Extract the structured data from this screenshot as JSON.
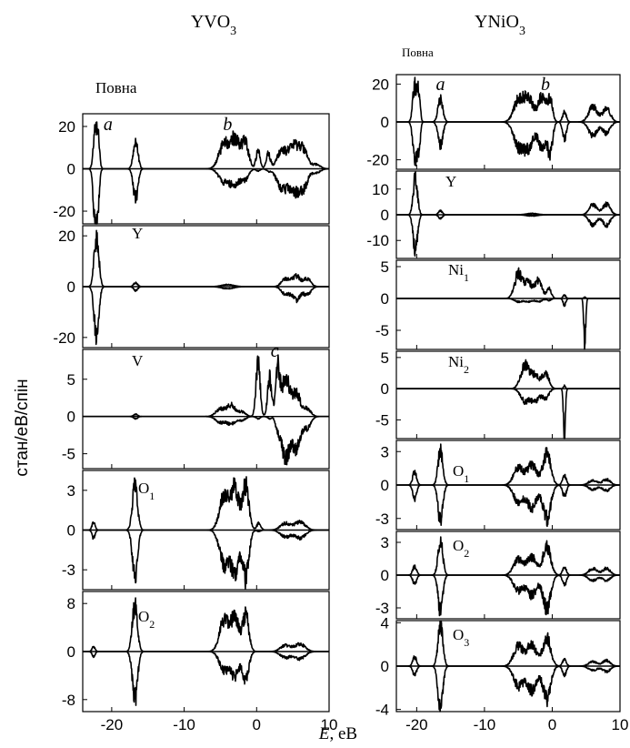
{
  "figure": {
    "xlabel_var": "E",
    "xlabel_unit": ", eВ",
    "ylabel": "стан/еВ/спін"
  },
  "columns": [
    {
      "title": "YVO",
      "title_sub": "3",
      "panels": [
        {
          "label": "Повна",
          "label_sub": "",
          "letters": [
            {
              "text": "a",
              "x": -20.5
            },
            {
              "text": "b",
              "x": -4
            }
          ],
          "yticks": [
            {
              "v": 20,
              "t": "20"
            },
            {
              "v": 0,
              "t": "0"
            },
            {
              "v": -20,
              "t": "-20"
            }
          ]
        },
        {
          "label": "Y",
          "label_sub": "",
          "letters": [],
          "yticks": [
            {
              "v": 20,
              "t": "20"
            },
            {
              "v": 0,
              "t": "0"
            },
            {
              "v": -20,
              "t": "-20"
            }
          ]
        },
        {
          "label": "V",
          "label_sub": "",
          "letters": [
            {
              "text": "c",
              "x": 2.5
            }
          ],
          "yticks": [
            {
              "v": 5,
              "t": "5"
            },
            {
              "v": 0,
              "t": "0"
            },
            {
              "v": -5,
              "t": "-5"
            }
          ]
        },
        {
          "label": "O",
          "label_sub": "1",
          "letters": [],
          "yticks": [
            {
              "v": 3,
              "t": "3"
            },
            {
              "v": 0,
              "t": "0"
            },
            {
              "v": -3,
              "t": "-3"
            }
          ]
        },
        {
          "label": "O",
          "label_sub": "2",
          "letters": [],
          "yticks": [
            {
              "v": 8,
              "t": "8"
            },
            {
              "v": 0,
              "t": "0"
            },
            {
              "v": -8,
              "t": "-8"
            }
          ]
        }
      ],
      "xticks": [
        {
          "v": -20,
          "t": "-20"
        },
        {
          "v": -10,
          "t": "-10"
        },
        {
          "v": 0,
          "t": "0"
        },
        {
          "v": 10,
          "t": "10"
        }
      ]
    },
    {
      "title": "YNiO",
      "title_sub": "3",
      "panels": [
        {
          "label": "Повна",
          "label_sub": "",
          "letters": [
            {
              "text": "a",
              "x": -16.5
            },
            {
              "text": "b",
              "x": -1
            }
          ],
          "yticks": [
            {
              "v": 20,
              "t": "20"
            },
            {
              "v": 0,
              "t": "0"
            },
            {
              "v": -20,
              "t": "-20"
            }
          ]
        },
        {
          "label": "Y",
          "label_sub": "",
          "letters": [],
          "yticks": [
            {
              "v": 10,
              "t": "10"
            },
            {
              "v": 0,
              "t": "0"
            },
            {
              "v": -10,
              "t": "-10"
            }
          ]
        },
        {
          "label": "Ni",
          "label_sub": "1",
          "letters": [],
          "yticks": [
            {
              "v": 5,
              "t": "5"
            },
            {
              "v": 0,
              "t": "0"
            },
            {
              "v": -5,
              "t": "-5"
            }
          ]
        },
        {
          "label": "Ni",
          "label_sub": "2",
          "letters": [],
          "yticks": [
            {
              "v": 5,
              "t": "5"
            },
            {
              "v": 0,
              "t": "0"
            },
            {
              "v": -5,
              "t": "-5"
            }
          ]
        },
        {
          "label": "O",
          "label_sub": "1",
          "letters": [],
          "yticks": [
            {
              "v": 3,
              "t": "3"
            },
            {
              "v": 0,
              "t": "0"
            },
            {
              "v": -3,
              "t": "-3"
            }
          ]
        },
        {
          "label": "O",
          "label_sub": "2",
          "letters": [],
          "yticks": [
            {
              "v": 3,
              "t": "3"
            },
            {
              "v": 0,
              "t": "0"
            },
            {
              "v": -3,
              "t": "-3"
            }
          ]
        },
        {
          "label": "O",
          "label_sub": "3",
          "letters": [],
          "yticks": [
            {
              "v": 4,
              "t": "4"
            },
            {
              "v": 0,
              "t": "0"
            },
            {
              "v": -4,
              "t": "-4"
            }
          ]
        }
      ],
      "xticks": [
        {
          "v": -20,
          "t": "-20"
        },
        {
          "v": -10,
          "t": "-10"
        },
        {
          "v": 0,
          "t": "0"
        },
        {
          "v": 10,
          "t": "10"
        }
      ]
    }
  ],
  "chart_data": [
    {
      "type": "line",
      "compound": "YVO3",
      "xlabel": "E, eВ",
      "ylabel": "стан/еВ/спін",
      "xlim": [
        -24,
        10
      ],
      "subplots": [
        {
          "name": "Повна",
          "ylim": [
            -26,
            26
          ],
          "peaks": [
            {
              "x": -22.3,
              "up": 17,
              "down": -24,
              "w": 0.35
            },
            {
              "x": -21.9,
              "up": 14,
              "down": -15,
              "w": 0.3
            },
            {
              "x": -16.7,
              "up": 13,
              "down": -14,
              "w": 0.45
            },
            {
              "x": -4.5,
              "up": 11,
              "down": -6,
              "w": 1.0
            },
            {
              "x": -3.0,
              "up": 13,
              "down": -7,
              "w": 0.9
            },
            {
              "x": -1.6,
              "up": 12,
              "down": -5,
              "w": 0.7
            },
            {
              "x": 0.2,
              "up": 8,
              "down": -1,
              "w": 0.4
            },
            {
              "x": 1.6,
              "up": 7,
              "down": -1,
              "w": 0.4
            },
            {
              "x": 3.5,
              "up": 8,
              "down": -9,
              "w": 1.0
            },
            {
              "x": 5.2,
              "up": 10,
              "down": -10,
              "w": 1.0
            },
            {
              "x": 6.5,
              "up": 8,
              "down": -8,
              "w": 0.8
            },
            {
              "x": 8.2,
              "up": 2,
              "down": -2,
              "w": 0.8
            }
          ]
        },
        {
          "name": "Y",
          "ylim": [
            -24,
            24
          ],
          "peaks": [
            {
              "x": -22.1,
              "up": 20,
              "down": -20,
              "w": 0.45
            },
            {
              "x": -16.7,
              "up": 1.5,
              "down": -1.5,
              "w": 0.4
            },
            {
              "x": -4,
              "up": 0.8,
              "down": -0.8,
              "w": 1.2
            },
            {
              "x": 4,
              "up": 3,
              "down": -3,
              "w": 0.8
            },
            {
              "x": 5.5,
              "up": 4,
              "down": -5,
              "w": 0.8
            },
            {
              "x": 7,
              "up": 3,
              "down": -3,
              "w": 0.7
            }
          ]
        },
        {
          "name": "V",
          "ylim": [
            -7,
            9
          ],
          "peaks": [
            {
              "x": -16.7,
              "up": 0.3,
              "down": -0.3,
              "w": 0.4
            },
            {
              "x": -5,
              "up": 1.0,
              "down": -0.8,
              "w": 0.9
            },
            {
              "x": -3.5,
              "up": 1.5,
              "down": -1.0,
              "w": 0.8
            },
            {
              "x": -2,
              "up": 0.6,
              "down": -0.5,
              "w": 0.7
            },
            {
              "x": 0.2,
              "up": 7.2,
              "down": -0.3,
              "w": 0.4
            },
            {
              "x": 1.8,
              "up": 5,
              "down": -0.3,
              "w": 0.4
            },
            {
              "x": 2.9,
              "up": 6,
              "down": -1.5,
              "w": 0.4
            },
            {
              "x": 4,
              "up": 5,
              "down": -5.5,
              "w": 0.8
            },
            {
              "x": 5.5,
              "up": 3,
              "down": -4,
              "w": 0.8
            },
            {
              "x": 7,
              "up": 1,
              "down": -1.5,
              "w": 0.7
            }
          ]
        },
        {
          "name": "O1",
          "ylim": [
            -4.5,
            4.5
          ],
          "peaks": [
            {
              "x": -22.5,
              "up": 0.6,
              "down": -0.6,
              "w": 0.3
            },
            {
              "x": -16.8,
              "up": 3.3,
              "down": -3.5,
              "w": 0.5
            },
            {
              "x": -4.5,
              "up": 2.5,
              "down": -2.5,
              "w": 0.9
            },
            {
              "x": -3.0,
              "up": 3,
              "down": -3,
              "w": 0.8
            },
            {
              "x": -1.5,
              "up": 3.3,
              "down": -3.5,
              "w": 0.6
            },
            {
              "x": 0.3,
              "up": 0.5,
              "down": -0.1,
              "w": 0.4
            },
            {
              "x": 4,
              "up": 0.5,
              "down": -0.5,
              "w": 1.0
            },
            {
              "x": 6,
              "up": 0.6,
              "down": -0.6,
              "w": 1.0
            }
          ]
        },
        {
          "name": "O2",
          "ylim": [
            -10,
            10
          ],
          "peaks": [
            {
              "x": -22.5,
              "up": 0.8,
              "down": -0.8,
              "w": 0.3
            },
            {
              "x": -16.8,
              "up": 7.5,
              "down": -8,
              "w": 0.5
            },
            {
              "x": -4.5,
              "up": 5,
              "down": -3,
              "w": 0.9
            },
            {
              "x": -3.0,
              "up": 5.5,
              "down": -4,
              "w": 0.8
            },
            {
              "x": -1.5,
              "up": 6,
              "down": -4.5,
              "w": 0.6
            },
            {
              "x": 4,
              "up": 1,
              "down": -1,
              "w": 1.0
            },
            {
              "x": 6,
              "up": 1.2,
              "down": -1.2,
              "w": 1.0
            }
          ]
        }
      ]
    },
    {
      "type": "line",
      "compound": "YNiO3",
      "xlabel": "E, eВ",
      "ylabel": "стан/еВ/спін",
      "xlim": [
        -23,
        10
      ],
      "subplots": [
        {
          "name": "Повна",
          "ylim": [
            -25,
            25
          ],
          "peaks": [
            {
              "x": -20.3,
              "up": 19,
              "down": -20,
              "w": 0.4
            },
            {
              "x": -19.7,
              "up": 15,
              "down": -15,
              "w": 0.3
            },
            {
              "x": -16.5,
              "up": 12,
              "down": -12,
              "w": 0.5
            },
            {
              "x": -5,
              "up": 11,
              "down": -12,
              "w": 1.0
            },
            {
              "x": -3.5,
              "up": 12,
              "down": -13,
              "w": 1.0
            },
            {
              "x": -1.5,
              "up": 13,
              "down": -13,
              "w": 0.8
            },
            {
              "x": -0.3,
              "up": 11,
              "down": -16,
              "w": 0.5
            },
            {
              "x": 1.8,
              "up": 5,
              "down": -9,
              "w": 0.4
            },
            {
              "x": 6,
              "up": 8,
              "down": -7,
              "w": 0.9
            },
            {
              "x": 8,
              "up": 7,
              "down": -6,
              "w": 0.8
            }
          ]
        },
        {
          "name": "Y",
          "ylim": [
            -17,
            17
          ],
          "peaks": [
            {
              "x": -20.2,
              "up": 14,
              "down": -14,
              "w": 0.45
            },
            {
              "x": -16.5,
              "up": 1.5,
              "down": -1.5,
              "w": 0.4
            },
            {
              "x": -3,
              "up": 0.5,
              "down": -0.5,
              "w": 1.2
            },
            {
              "x": 6,
              "up": 4,
              "down": -4,
              "w": 0.8
            },
            {
              "x": 8,
              "up": 4,
              "down": -4,
              "w": 0.8
            }
          ]
        },
        {
          "name": "Ni1",
          "ylim": [
            -8,
            6
          ],
          "peaks": [
            {
              "x": -5,
              "up": 3.8,
              "down": -0.5,
              "w": 0.8
            },
            {
              "x": -3.5,
              "up": 2.5,
              "down": -0.5,
              "w": 0.8
            },
            {
              "x": -2,
              "up": 2.8,
              "down": -0.5,
              "w": 0.7
            },
            {
              "x": -0.5,
              "up": 1.5,
              "down": -0.3,
              "w": 0.5
            },
            {
              "x": 1.8,
              "up": 0.5,
              "down": -1,
              "w": 0.3
            },
            {
              "x": 4.8,
              "up": 0.2,
              "down": -7,
              "w": 0.2
            }
          ]
        },
        {
          "name": "Ni2",
          "ylim": [
            -8,
            6
          ],
          "peaks": [
            {
              "x": -4,
              "up": 3.8,
              "down": -2,
              "w": 0.9
            },
            {
              "x": -2.5,
              "up": 2,
              "down": -2,
              "w": 0.8
            },
            {
              "x": -1,
              "up": 2.5,
              "down": -1.5,
              "w": 0.7
            },
            {
              "x": 1.8,
              "up": 0.5,
              "down": -7.5,
              "w": 0.2
            }
          ]
        },
        {
          "name": "O1",
          "ylim": [
            -4,
            4
          ],
          "peaks": [
            {
              "x": -20.3,
              "up": 1.2,
              "down": -1.2,
              "w": 0.4
            },
            {
              "x": -16.5,
              "up": 3,
              "down": -3.2,
              "w": 0.5
            },
            {
              "x": -5,
              "up": 1.5,
              "down": -1.5,
              "w": 1.0
            },
            {
              "x": -3,
              "up": 1.8,
              "down": -2,
              "w": 1.0
            },
            {
              "x": -0.8,
              "up": 2.8,
              "down": -3,
              "w": 0.8
            },
            {
              "x": 1.8,
              "up": 0.8,
              "down": -1,
              "w": 0.4
            },
            {
              "x": 6,
              "up": 0.4,
              "down": -0.4,
              "w": 0.9
            },
            {
              "x": 8,
              "up": 0.5,
              "down": -0.5,
              "w": 0.8
            }
          ]
        },
        {
          "name": "O2",
          "ylim": [
            -4,
            4
          ],
          "peaks": [
            {
              "x": -20.3,
              "up": 0.8,
              "down": -0.8,
              "w": 0.4
            },
            {
              "x": -16.5,
              "up": 3,
              "down": -3.2,
              "w": 0.5
            },
            {
              "x": -5,
              "up": 1.4,
              "down": -1.4,
              "w": 1.0
            },
            {
              "x": -3,
              "up": 1.6,
              "down": -1.8,
              "w": 1.0
            },
            {
              "x": -0.8,
              "up": 2.6,
              "down": -3,
              "w": 0.8
            },
            {
              "x": 1.8,
              "up": 0.7,
              "down": -0.9,
              "w": 0.4
            },
            {
              "x": 6,
              "up": 0.6,
              "down": -0.5,
              "w": 0.9
            },
            {
              "x": 8,
              "up": 0.6,
              "down": -0.5,
              "w": 0.8
            }
          ]
        },
        {
          "name": "O3",
          "ylim": [
            -4.2,
            4.2
          ],
          "peaks": [
            {
              "x": -20.3,
              "up": 0.8,
              "down": -0.8,
              "w": 0.4
            },
            {
              "x": -16.5,
              "up": 3.8,
              "down": -4,
              "w": 0.5
            },
            {
              "x": -5,
              "up": 1.8,
              "down": -1.8,
              "w": 1.0
            },
            {
              "x": -3,
              "up": 2,
              "down": -2.2,
              "w": 1.0
            },
            {
              "x": -0.8,
              "up": 2.6,
              "down": -3,
              "w": 0.8
            },
            {
              "x": 1.8,
              "up": 0.6,
              "down": -0.8,
              "w": 0.4
            },
            {
              "x": 6,
              "up": 0.4,
              "down": -0.4,
              "w": 0.9
            },
            {
              "x": 8,
              "up": 0.5,
              "down": -0.5,
              "w": 0.8
            }
          ]
        }
      ]
    }
  ]
}
